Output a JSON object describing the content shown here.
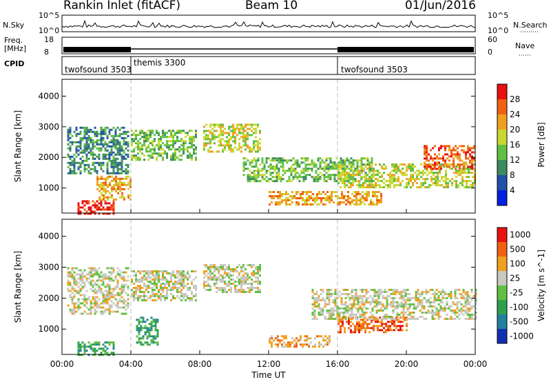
{
  "header": {
    "station": "Rankin Inlet (fitACF)",
    "beam": "Beam 10",
    "date": "01/Jun/2016"
  },
  "top_panels": {
    "nsky_label": "N.Sky",
    "nsky_ticks": [
      "10^5",
      "10^0"
    ],
    "nsearch_label": "N.Search",
    "nsearch_ticks": [
      "10^5",
      "10^0"
    ],
    "freq_label": "Freq.",
    "freq_unit": "[MHz]",
    "freq_ticks": [
      "18",
      "8"
    ],
    "nave_label": "Nave",
    "nave_ticks": [
      "60",
      "0"
    ],
    "cpid_label": "CPID",
    "cpid_segments": [
      {
        "name": "twofsound 3503",
        "start": 0,
        "end": 4
      },
      {
        "name": "themis 3300",
        "start": 4,
        "end": 16
      },
      {
        "name": "twofsound 3503",
        "start": 16,
        "end": 24
      }
    ]
  },
  "chart_data": [
    {
      "type": "heatmap",
      "title": "",
      "xlabel": "Time UT",
      "ylabel": "Slant Range [km]",
      "xlim": [
        0,
        24
      ],
      "ylim": [
        180,
        4550
      ],
      "x_ticks": [
        "00:00",
        "04:00",
        "08:00",
        "12:00",
        "16:00",
        "20:00",
        "00:00"
      ],
      "y_ticks": [
        "1000",
        "2000",
        "3000",
        "4000"
      ],
      "colorbar": {
        "label": "Power [dB]",
        "ticks": [
          "4",
          "8",
          "12",
          "16",
          "20",
          "24",
          "28"
        ],
        "colors": [
          "#0020e0",
          "#2050a8",
          "#3c8a60",
          "#60c040",
          "#c8d830",
          "#f0a020",
          "#f06010",
          "#e81010"
        ]
      },
      "regions": [
        {
          "t0": 0.3,
          "t1": 3.9,
          "r0": 1500,
          "r1": 3000,
          "level": 2
        },
        {
          "t0": 0.9,
          "t1": 3.0,
          "r0": 180,
          "r1": 600,
          "level": 7
        },
        {
          "t0": 2.0,
          "t1": 4.0,
          "r0": 600,
          "r1": 1400,
          "level": 5
        },
        {
          "t0": 4.0,
          "t1": 7.8,
          "r0": 1900,
          "r1": 2900,
          "level": 3
        },
        {
          "t0": 8.2,
          "t1": 11.5,
          "r0": 2200,
          "r1": 3100,
          "level": 4
        },
        {
          "t0": 10.5,
          "t1": 18.0,
          "r0": 1200,
          "r1": 2000,
          "level": 3
        },
        {
          "t0": 12.0,
          "t1": 18.5,
          "r0": 450,
          "r1": 900,
          "level": 5
        },
        {
          "t0": 16.0,
          "t1": 24.0,
          "r0": 1000,
          "r1": 1800,
          "level": 4
        },
        {
          "t0": 21.0,
          "t1": 24.0,
          "r0": 1600,
          "r1": 2400,
          "level": 6
        }
      ]
    },
    {
      "type": "heatmap",
      "title": "",
      "xlabel": "Time UT",
      "ylabel": "Slant Range [km]",
      "xlim": [
        0,
        24
      ],
      "ylim": [
        180,
        4550
      ],
      "x_ticks": [
        "00:00",
        "04:00",
        "08:00",
        "12:00",
        "16:00",
        "20:00",
        "00:00"
      ],
      "y_ticks": [
        "1000",
        "2000",
        "3000",
        "4000"
      ],
      "colorbar": {
        "label": "Velocity [m s^-1]",
        "ticks": [
          "1000",
          "500",
          "100",
          "25",
          "-25",
          "-100",
          "-500",
          "-1000"
        ],
        "colors": [
          "#1030b0",
          "#2080a0",
          "#30a050",
          "#60c040",
          "#c8c8c0",
          "#f0a020",
          "#f06010",
          "#e81010"
        ]
      },
      "regions": [
        {
          "t0": 0.3,
          "t1": 3.9,
          "r0": 1500,
          "r1": 3000,
          "level": 4
        },
        {
          "t0": 0.9,
          "t1": 3.0,
          "r0": 180,
          "r1": 600,
          "level": 2
        },
        {
          "t0": 4.3,
          "t1": 5.6,
          "r0": 500,
          "r1": 1400,
          "level": 2
        },
        {
          "t0": 4.0,
          "t1": 7.8,
          "r0": 1900,
          "r1": 2900,
          "level": 4
        },
        {
          "t0": 8.2,
          "t1": 11.5,
          "r0": 2200,
          "r1": 3100,
          "level": 4
        },
        {
          "t0": 12.0,
          "t1": 15.5,
          "r0": 450,
          "r1": 800,
          "level": 5
        },
        {
          "t0": 16.0,
          "t1": 20.0,
          "r0": 900,
          "r1": 1400,
          "level": 6
        },
        {
          "t0": 14.5,
          "t1": 24.0,
          "r0": 1300,
          "r1": 2300,
          "level": 4
        }
      ]
    }
  ]
}
